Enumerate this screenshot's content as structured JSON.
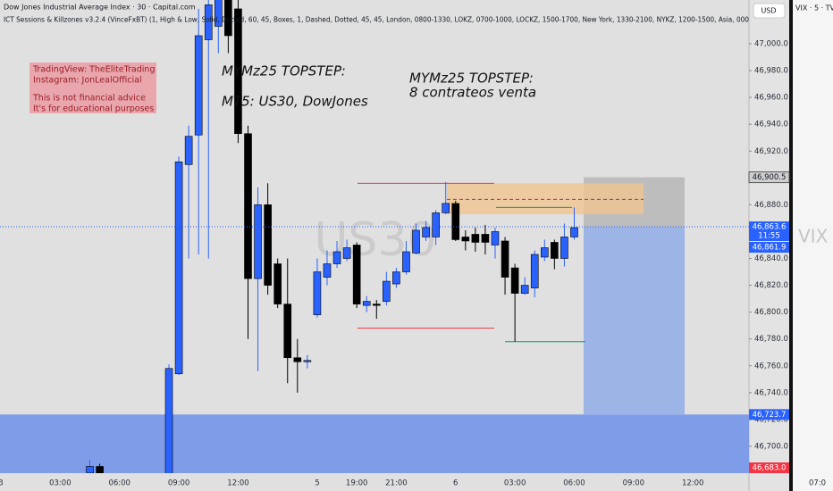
{
  "header": {
    "symbol_line": "Dow Jones Industrial Average Index · 30 · Capital.com",
    "indicator_line": "ICT Sessions & Killzones v3.2.4 (VinceFxBT) (1, High & Low, Solid, Dotted, 60, 45, Boxes, 1, Dashed, Dotted, 45, 45, London, 0800-1330, LOKZ, 0700-1000, LOCKZ, 1500-1700, New York, 1330-2100, NYKZ, 1200-1500, Asia, 000",
    "currency": "USD"
  },
  "note_box": {
    "lines": [
      "TradingView: TheEliteTrading",
      "Instagram: JonLealOfficial",
      "This is not financial advice",
      "It's for educational purposes"
    ]
  },
  "annotations": [
    "MYMz25 TOPSTEP:",
    "MT5: US30, DowJones",
    "MYMz25 TOPSTEP:",
    "8 contrateos venta"
  ],
  "side_panel": {
    "title": "VIX · 5 · TV",
    "watermark": "VIX",
    "time_label": "07:0"
  },
  "chart_data": {
    "type": "candlestick",
    "watermark": "US30",
    "categories": [
      "3",
      null,
      null,
      null,
      null,
      null,
      "03:00",
      null,
      null,
      null,
      null,
      null,
      "06:00",
      null,
      null,
      null,
      null,
      null,
      "09:00",
      null,
      null,
      null,
      null,
      null,
      "12:00",
      null,
      null,
      null,
      null,
      null,
      null,
      null,
      "5",
      null,
      null,
      null,
      "19:00",
      null,
      null,
      null,
      "21:00",
      null,
      null,
      null,
      null,
      null,
      "6",
      null,
      null,
      null,
      null,
      null,
      "03:00",
      null,
      null,
      null,
      null,
      null,
      "06:00",
      null,
      null,
      null,
      null,
      null,
      "09:00",
      null,
      null,
      null,
      null,
      null,
      "12:00",
      null,
      null,
      null,
      null,
      null
    ],
    "open": [
      null,
      null,
      null,
      null,
      null,
      null,
      null,
      null,
      null,
      46680,
      46685,
      null,
      null,
      null,
      null,
      null,
      null,
      46660,
      46754,
      46910,
      46932,
      47003,
      47013,
      47033,
      47026,
      46933,
      46825,
      46880,
      46836,
      46806,
      46766,
      46763,
      46798,
      46826,
      46836,
      46840,
      46850,
      46805,
      46806,
      46808,
      46821,
      46830,
      46844,
      46856,
      46856,
      46874,
      46881,
      46856,
      46858,
      46858,
      46850,
      46853,
      46833,
      46814,
      46818,
      46841,
      46852,
      46840,
      46856,
      null,
      null,
      null,
      null,
      null,
      null,
      null,
      null,
      null,
      null,
      null,
      null,
      null,
      null,
      null,
      null,
      null
    ],
    "high": [
      null,
      null,
      null,
      null,
      null,
      null,
      null,
      null,
      null,
      46690,
      46687,
      null,
      null,
      null,
      null,
      null,
      null,
      46761,
      46916,
      46939,
      47026,
      47039,
      47053,
      47046,
      47039,
      46939,
      46893,
      46896,
      46840,
      46840,
      46780,
      46768,
      46840,
      46846,
      46853,
      46854,
      46852,
      46812,
      46809,
      46830,
      46833,
      46853,
      46866,
      46868,
      46876,
      46897,
      46883,
      46861,
      46863,
      46865,
      46863,
      46856,
      46836,
      46826,
      46846,
      46854,
      46854,
      46866,
      46878,
      null,
      null,
      null,
      null,
      null,
      null,
      null,
      null,
      null,
      null,
      null,
      null,
      null,
      null,
      null,
      null,
      null
    ],
    "low": [
      null,
      null,
      null,
      null,
      null,
      null,
      null,
      null,
      null,
      46677,
      46677,
      null,
      null,
      null,
      null,
      null,
      null,
      46660,
      46753,
      46840,
      46843,
      46840,
      46993,
      46993,
      46926,
      46780,
      46756,
      46813,
      46803,
      46747,
      46740,
      46758,
      46796,
      46820,
      46833,
      46838,
      46803,
      46800,
      46795,
      46805,
      46818,
      46828,
      46843,
      46853,
      46850,
      46873,
      46853,
      46846,
      46845,
      46843,
      46840,
      46813,
      46778,
      46813,
      46811,
      46838,
      46832,
      46834,
      46854,
      null,
      null,
      null,
      null,
      null,
      null,
      null,
      null,
      null,
      null,
      null,
      null,
      null,
      null,
      null,
      null,
      null
    ],
    "close": [
      null,
      null,
      null,
      null,
      null,
      null,
      null,
      null,
      null,
      46685,
      46679,
      null,
      null,
      null,
      null,
      null,
      null,
      46758,
      46912,
      46931,
      47006,
      47029,
      47039,
      47006,
      46933,
      46825,
      46880,
      46820,
      46806,
      46766,
      46763,
      46764,
      46830,
      46836,
      46845,
      46848,
      46806,
      46808,
      46805,
      46823,
      46830,
      46845,
      46861,
      46863,
      46874,
      46881,
      46854,
      46853,
      46852,
      46852,
      46860,
      46826,
      46814,
      46820,
      46843,
      46848,
      46840,
      46856,
      46863,
      null,
      null,
      null,
      null,
      null,
      null,
      null,
      null,
      null,
      null,
      null,
      null,
      null,
      null,
      null,
      null,
      null
    ],
    "up_color": "#2962ff",
    "down_color": "#000000",
    "ylim": [
      46680,
      47032.6
    ],
    "yticks": [
      {
        "value": 47000,
        "label": "47,000.0"
      },
      {
        "value": 46980,
        "label": "46,980.0"
      },
      {
        "value": 46960,
        "label": "46,960.0"
      },
      {
        "value": 46940,
        "label": "46,940.0"
      },
      {
        "value": 46920,
        "label": "46,920.0"
      },
      {
        "value": 46900,
        "label": "46,900.0"
      },
      {
        "value": 46880,
        "label": "46,880.0"
      },
      {
        "value": 46860,
        "label": "46,860.0"
      },
      {
        "value": 46840,
        "label": "46,840.0"
      },
      {
        "value": 46820,
        "label": "46,820.0"
      },
      {
        "value": 46800,
        "label": "46,800.0"
      },
      {
        "value": 46780,
        "label": "46,780.0"
      },
      {
        "value": 46760,
        "label": "46,760.0"
      },
      {
        "value": 46740,
        "label": "46,740.0"
      },
      {
        "value": 46720,
        "label": "46,720.0"
      },
      {
        "value": 46700,
        "label": "46,700.0"
      }
    ],
    "grid": false,
    "price_tags": [
      {
        "value": 46900.5,
        "label": "46,900.5",
        "color": "#cfcfcf",
        "text_color": "#131722"
      },
      {
        "value": 46863.6,
        "label": "46,863.6",
        "sublabel": "11:55",
        "color": "#2962ff",
        "text_color": "#ffffff"
      },
      {
        "value": 46861.9,
        "label": "46,861.9",
        "color": "#2962ff",
        "text_color": "#ffffff"
      },
      {
        "value": 46723.7,
        "label": "46,723.7",
        "color": "#2962ff",
        "text_color": "#ffffff"
      },
      {
        "value": 46683.0,
        "label": "46,683.0",
        "color": "#f23645",
        "text_color": "#ffffff"
      }
    ],
    "position": {
      "stop": 46900.5,
      "entry": 46863.6,
      "target": 46723.7,
      "stop_color": "#bdbdbd",
      "target_color": "#9cb4e6"
    },
    "zone": {
      "high": 46723.7,
      "color": "#7f9ce8"
    },
    "box": {
      "high": 46896,
      "low": 46873,
      "color": "#f0c48e"
    },
    "levels": [
      {
        "price": 46896,
        "color": "#f23645"
      },
      {
        "price": 46788,
        "color": "#f23645"
      },
      {
        "price": 46778,
        "color": "#089981"
      },
      {
        "price": 46878,
        "color": "#089981"
      },
      {
        "price": 46884,
        "color": "#9c27b0"
      }
    ]
  }
}
